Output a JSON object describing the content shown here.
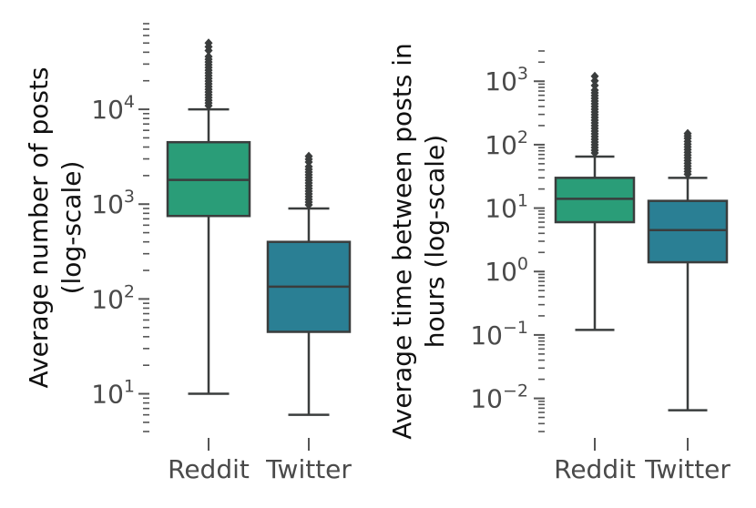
{
  "chart_data": [
    {
      "type": "box",
      "scale": "log",
      "ylabel_lines": [
        "Average number of posts",
        "(log-scale)"
      ],
      "categories": [
        "Reddit",
        "Twitter"
      ],
      "ylim": [
        4,
        80000
      ],
      "yticks": [
        {
          "base": "10",
          "exp": "1",
          "value": 10
        },
        {
          "base": "10",
          "exp": "2",
          "value": 100
        },
        {
          "base": "10",
          "exp": "3",
          "value": 1000
        },
        {
          "base": "10",
          "exp": "4",
          "value": 10000
        }
      ],
      "boxes": [
        {
          "category": "Reddit",
          "color": "#2a9d78",
          "whisker_low": 10,
          "q1": 750,
          "median": 1800,
          "q3": 4500,
          "whisker_high": 10000,
          "outlier_max": 50000
        },
        {
          "category": "Twitter",
          "color": "#2a7f94",
          "whisker_low": 6,
          "q1": 45,
          "median": 135,
          "q3": 400,
          "whisker_high": 900,
          "outlier_max": 3200
        }
      ]
    },
    {
      "type": "box",
      "scale": "log",
      "ylabel_lines": [
        "Average time between posts in",
        "hours (log-scale)"
      ],
      "categories": [
        "Reddit",
        "Twitter"
      ],
      "ylim": [
        0.003,
        3000
      ],
      "yticks": [
        {
          "base": "10",
          "exp": "−2",
          "value": 0.01
        },
        {
          "base": "10",
          "exp": "−1",
          "value": 0.1
        },
        {
          "base": "10",
          "exp": "0",
          "value": 1
        },
        {
          "base": "10",
          "exp": "1",
          "value": 10
        },
        {
          "base": "10",
          "exp": "2",
          "value": 100
        },
        {
          "base": "10",
          "exp": "3",
          "value": 1000
        }
      ],
      "boxes": [
        {
          "category": "Reddit",
          "color": "#2a9d78",
          "whisker_low": 0.12,
          "q1": 6,
          "median": 14,
          "q3": 30,
          "whisker_high": 65,
          "outlier_max": 1200
        },
        {
          "category": "Twitter",
          "color": "#2a7f94",
          "whisker_low": 0.0065,
          "q1": 1.4,
          "median": 4.5,
          "q3": 13,
          "whisker_high": 30,
          "outlier_max": 150
        }
      ]
    }
  ]
}
